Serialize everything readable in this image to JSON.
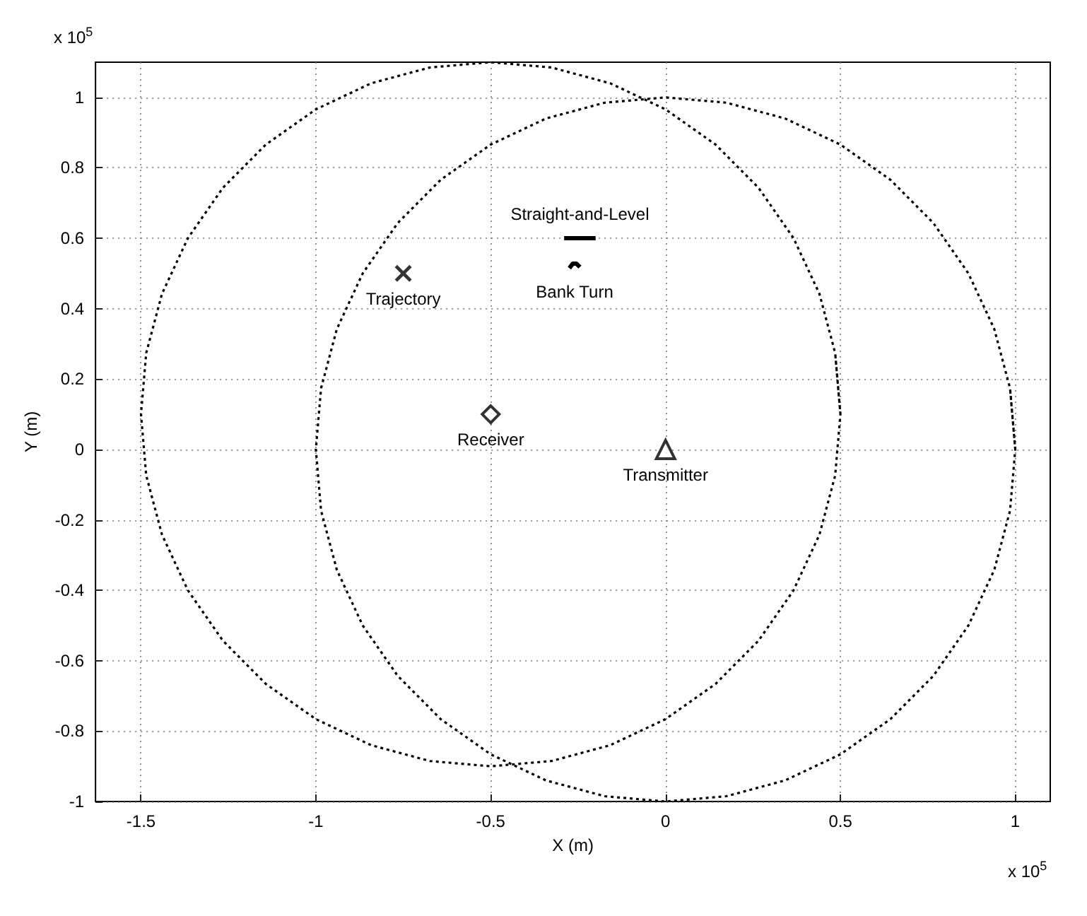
{
  "chart_data": {
    "type": "line",
    "xlabel": "X (m)",
    "ylabel": "Y (m)",
    "xlim": [
      -1.63,
      1.1
    ],
    "ylim": [
      -1,
      1.1
    ],
    "xticks": [
      -1.5,
      -1,
      -0.5,
      0,
      0.5,
      1
    ],
    "yticks": [
      -1,
      -0.8,
      -0.6,
      -0.4,
      -0.2,
      0,
      0.2,
      0.4,
      0.6,
      0.8,
      1
    ],
    "grid": true,
    "series": [
      {
        "color": "#000000",
        "line_style": "dotted",
        "marker": "none",
        "x": [
          1,
          0.985,
          0.94,
          0.866,
          0.766,
          0.643,
          0.5,
          0.342,
          0.174,
          0,
          -0.174,
          -0.342,
          -0.5,
          -0.643,
          -0.766,
          -0.866,
          -0.94,
          -0.985,
          -1,
          -0.985,
          -0.94,
          -0.866,
          -0.766,
          -0.643,
          -0.5,
          -0.342,
          -0.174,
          0,
          0.174,
          0.342,
          0.5,
          0.643,
          0.766,
          0.866,
          0.94,
          0.985,
          1,
          0.985
        ],
        "values": [
          0,
          0.174,
          0.342,
          0.5,
          0.643,
          0.766,
          0.866,
          0.94,
          0.985,
          1,
          0.985,
          0.94,
          0.866,
          0.766,
          0.643,
          0.5,
          0.342,
          0.174,
          0,
          -0.174,
          -0.342,
          -0.5,
          -0.643,
          -0.766,
          -0.866,
          -0.94,
          -0.985,
          -1,
          -0.985,
          -0.94,
          -0.866,
          -0.766,
          -0.643,
          -0.5,
          -0.342,
          -0.174,
          0,
          0.174
        ]
      },
      {
        "color": "#000000",
        "line_style": "dotted",
        "marker": "none",
        "x": [
          0.5,
          0.485,
          0.44,
          0.366,
          0.266,
          0.143,
          0,
          -0.158,
          -0.326,
          -0.5,
          -0.674,
          -0.842,
          -1,
          -1.143,
          -1.266,
          -1.366,
          -1.44,
          -1.485,
          -1.5,
          -1.485,
          -1.44,
          -1.366,
          -1.266,
          -1.143,
          -1,
          -0.842,
          -0.674,
          -0.5,
          -0.326,
          -0.158,
          0,
          0.143,
          0.266,
          0.366,
          0.44,
          0.485,
          0.5,
          0.485
        ],
        "values": [
          0.1,
          0.274,
          0.442,
          0.6,
          0.743,
          0.866,
          0.966,
          1.04,
          1.085,
          1.1,
          1.085,
          1.04,
          0.966,
          0.866,
          0.743,
          0.6,
          0.442,
          0.274,
          0.1,
          -0.074,
          -0.242,
          -0.4,
          -0.543,
          -0.666,
          -0.766,
          -0.84,
          -0.885,
          -0.9,
          -0.885,
          -0.84,
          -0.766,
          -0.666,
          -0.543,
          -0.4,
          -0.242,
          -0.074,
          0.1,
          0.274
        ]
      },
      {
        "color": "#000000",
        "line_style": "solid",
        "marker": "none",
        "x": [
          -0.29,
          -0.2
        ],
        "values": [
          0.6,
          0.6
        ]
      },
      {
        "color": "#000000",
        "line_style": "solid",
        "marker": "none",
        "x": [
          -0.275,
          -0.265,
          -0.255,
          -0.245
        ],
        "values": [
          0.515,
          0.528,
          0.528,
          0.518
        ]
      },
      {
        "type": "scatter",
        "color": "#000000",
        "marker": "cross",
        "x": [
          -0.75
        ],
        "values": [
          0.5
        ]
      },
      {
        "type": "scatter",
        "color": "#000000",
        "marker": "diamond",
        "x": [
          -0.5
        ],
        "values": [
          0.1
        ]
      },
      {
        "type": "scatter",
        "color": "#000000",
        "marker": "triangle",
        "x": [
          0
        ],
        "values": [
          0
        ]
      }
    ],
    "annotations": [
      "x 10$^{5}$",
      "x 10$^{5}$",
      {
        "text": "Straight-and-Level",
        "x": -0.245,
        "y": 0.6
      },
      {
        "text": "Bank Turn",
        "x": -0.26,
        "y": 0.52
      },
      {
        "text": "Trajectory",
        "x": -0.75,
        "y": 0.5
      },
      {
        "text": "Receiver",
        "x": -0.5,
        "y": 0.1
      },
      {
        "text": "Transmitter",
        "x": 0,
        "y": 0
      }
    ]
  }
}
